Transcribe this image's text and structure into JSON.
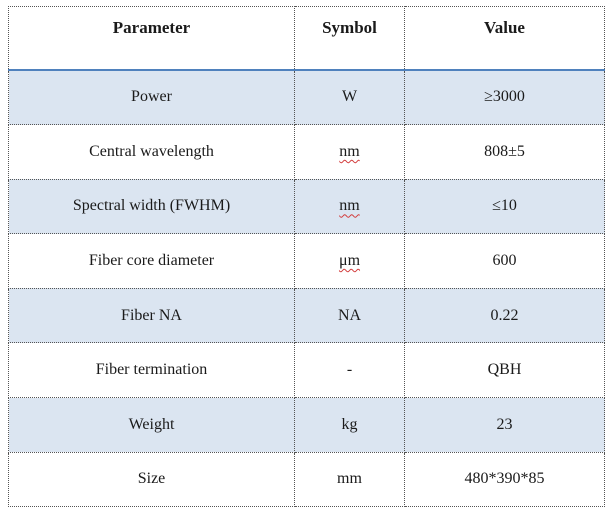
{
  "table": {
    "headers": [
      "Parameter",
      "Symbol",
      "Value"
    ],
    "rows": [
      {
        "parameter": "Power",
        "symbol": "W",
        "value": "≥3000"
      },
      {
        "parameter": "Central wavelength",
        "symbol": "nm",
        "value": "808±5"
      },
      {
        "parameter": "Spectral width (FWHM)",
        "symbol": "nm",
        "value": "≤10"
      },
      {
        "parameter": "Fiber core diameter",
        "symbol": "μm",
        "value": "600"
      },
      {
        "parameter": "Fiber NA",
        "symbol": "NA",
        "value": "0.22"
      },
      {
        "parameter": "Fiber termination",
        "symbol": "-",
        "value": "QBH"
      },
      {
        "parameter": "Weight",
        "symbol": "kg",
        "value": "23"
      },
      {
        "parameter": "Size",
        "symbol": "mm",
        "value": "480*390*85"
      }
    ]
  },
  "colors": {
    "shaded_row": "#dbe5f1",
    "header_rule": "#4f81bd",
    "spellcheck_underline": "#d23b3b"
  }
}
